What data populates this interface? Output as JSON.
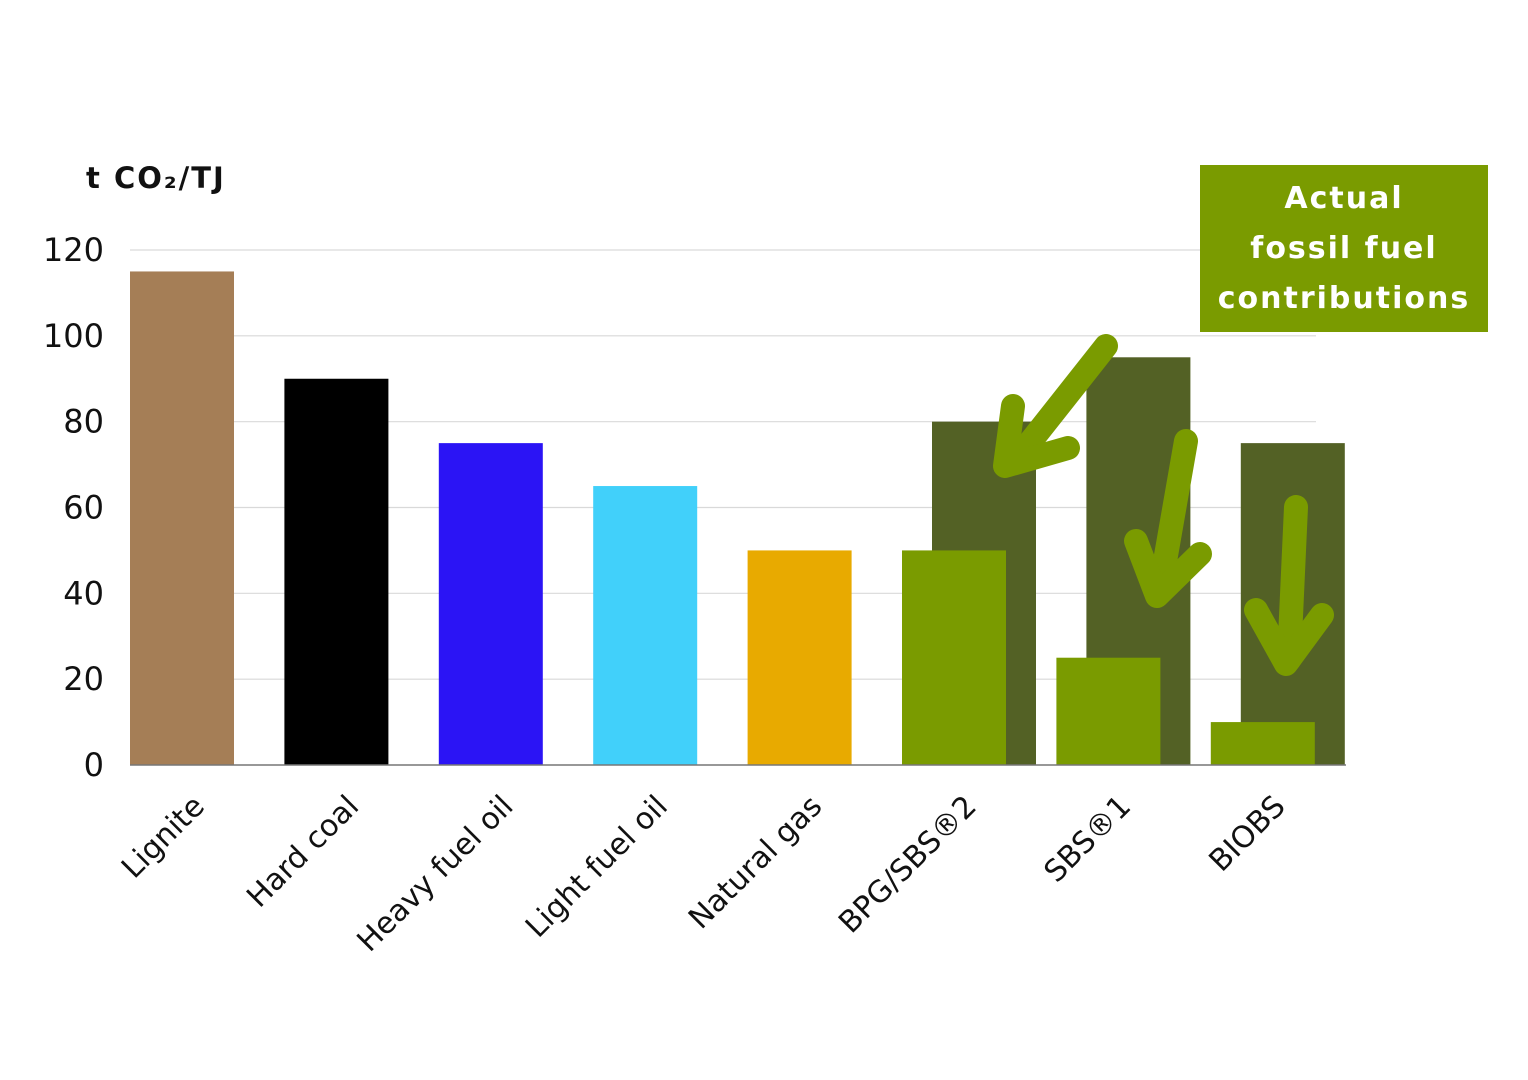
{
  "chart_data": {
    "type": "bar",
    "title": "",
    "xlabel": "",
    "ylabel": "t CO₂/TJ",
    "ylim": [
      0,
      120
    ],
    "yticks": [
      0,
      20,
      40,
      60,
      80,
      100,
      120
    ],
    "grid": true,
    "categories": [
      "Lignite",
      "Hard coal",
      "Heavy fuel oil",
      "Light fuel oil",
      "Natural gas",
      "BPG/SBS®2",
      "SBS®1",
      "BIOBS"
    ],
    "series": [
      {
        "values": [
          115,
          90,
          75,
          65,
          50,
          50,
          25,
          10
        ],
        "colors": [
          "#a57e56",
          "#000000",
          "#2b14f5",
          "#41d0fa",
          "#e8aa00",
          "#7a9b00",
          "#7a9b00",
          "#7a9b00"
        ]
      },
      {
        "values": [
          null,
          null,
          null,
          null,
          null,
          80,
          95,
          75
        ],
        "color": "#536125"
      }
    ],
    "annotation": {
      "text": "Actual\nfossil fuel\ncontributions",
      "background": "#7a9b00",
      "arrow_color": "#7a9b00",
      "placement": "top-right"
    }
  }
}
